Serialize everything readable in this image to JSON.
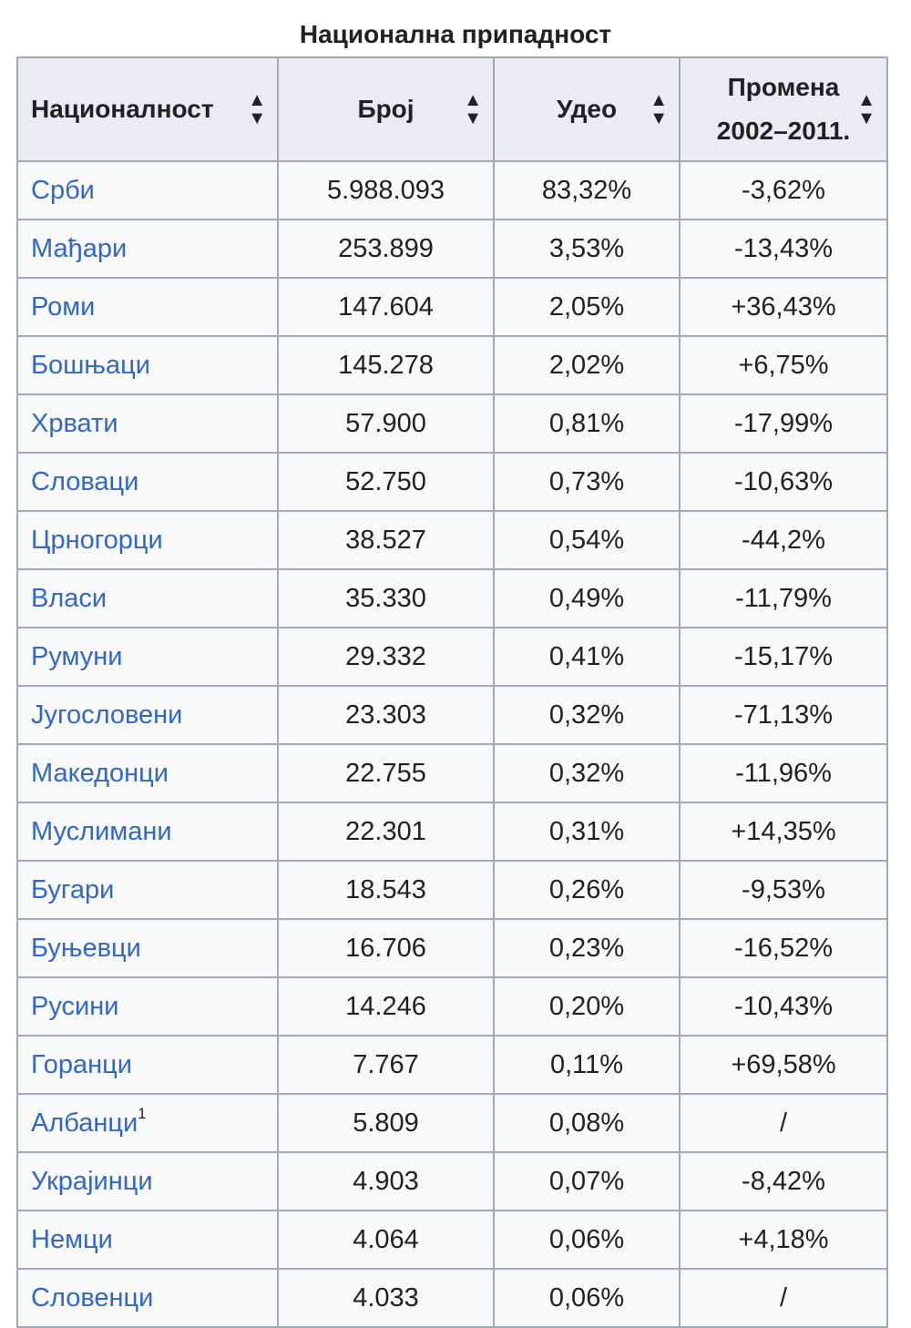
{
  "caption": "Национална припадност",
  "colors": {
    "link": "#3366cc",
    "header_bg": "#eaecf0",
    "cell_bg": "#f8f9fa",
    "border": "#a2a9b1"
  },
  "columns": [
    {
      "label": "Националност",
      "sort_icon": "sort-icon"
    },
    {
      "label": "Број",
      "sort_icon": "sort-icon"
    },
    {
      "label": "Удео",
      "sort_icon": "sort-icon"
    },
    {
      "label_line1": "Промена",
      "label_line2": "2002–2011.",
      "sort_icon": "sort-icon"
    }
  ],
  "rows": [
    {
      "name": "Срби",
      "count": "5.988.093",
      "share": "83,32%",
      "change": "-3,62%"
    },
    {
      "name": "Мађари",
      "count": "253.899",
      "share": "3,53%",
      "change": "-13,43%"
    },
    {
      "name": "Роми",
      "count": "147.604",
      "share": "2,05%",
      "change": "+36,43%"
    },
    {
      "name": "Бошњаци",
      "count": "145.278",
      "share": "2,02%",
      "change": "+6,75%"
    },
    {
      "name": "Хрвати",
      "count": "57.900",
      "share": "0,81%",
      "change": "-17,99%"
    },
    {
      "name": "Словаци",
      "count": "52.750",
      "share": "0,73%",
      "change": "-10,63%"
    },
    {
      "name": "Црногорци",
      "count": "38.527",
      "share": "0,54%",
      "change": "-44,2%"
    },
    {
      "name": "Власи",
      "count": "35.330",
      "share": "0,49%",
      "change": "-11,79%"
    },
    {
      "name": "Румуни",
      "count": "29.332",
      "share": "0,41%",
      "change": "-15,17%"
    },
    {
      "name": "Југословени",
      "count": "23.303",
      "share": "0,32%",
      "change": "-71,13%"
    },
    {
      "name": "Македонци",
      "count": "22.755",
      "share": "0,32%",
      "change": "-11,96%"
    },
    {
      "name": "Муслимани",
      "count": "22.301",
      "share": "0,31%",
      "change": "+14,35%"
    },
    {
      "name": "Бугари",
      "count": "18.543",
      "share": "0,26%",
      "change": "-9,53%"
    },
    {
      "name": "Буњевци",
      "count": "16.706",
      "share": "0,23%",
      "change": "-16,52%"
    },
    {
      "name": "Русини",
      "count": "14.246",
      "share": "0,20%",
      "change": "-10,43%"
    },
    {
      "name": "Горанци",
      "count": "7.767",
      "share": "0,11%",
      "change": "+69,58%"
    },
    {
      "name": "Албанци",
      "note": "1",
      "count": "5.809",
      "share": "0,08%",
      "change": "/"
    },
    {
      "name": "Украјинци",
      "count": "4.903",
      "share": "0,07%",
      "change": "-8,42%"
    },
    {
      "name": "Немци",
      "count": "4.064",
      "share": "0,06%",
      "change": "+4,18%"
    },
    {
      "name": "Словенци",
      "count": "4.033",
      "share": "0,06%",
      "change": "/"
    }
  ]
}
